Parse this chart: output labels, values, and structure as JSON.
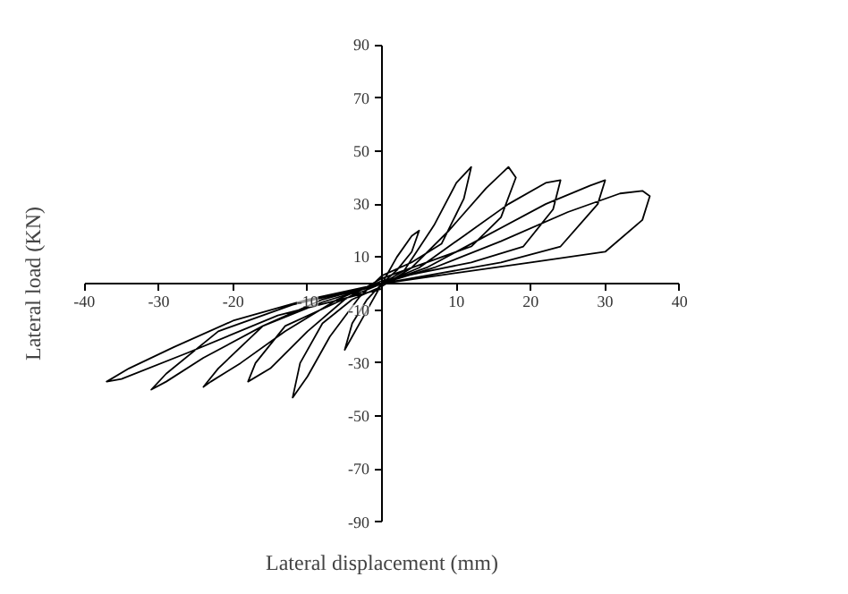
{
  "chart_data": {
    "type": "line",
    "xlabel": "Lateral displacement (mm)",
    "ylabel": "Lateral load (KN)",
    "xlim": [
      -40,
      40
    ],
    "ylim": [
      -90,
      90
    ],
    "xticks": [
      -40,
      -30,
      -20,
      -10,
      10,
      20,
      30,
      40
    ],
    "yticks": [
      -90,
      -70,
      -50,
      -30,
      -10,
      10,
      30,
      50,
      70,
      90
    ],
    "grid": false,
    "marker": "none",
    "line_style": "solid",
    "series": [
      {
        "color": "#000000",
        "x": [
          0,
          2,
          4,
          5,
          4,
          2,
          0,
          -2,
          -4,
          -5,
          -4,
          -2,
          0,
          3,
          7,
          10,
          12,
          11,
          8,
          4,
          0,
          -3,
          -7,
          -10,
          -12,
          -11,
          -8,
          -4,
          0,
          4,
          9,
          14,
          17,
          18,
          16,
          12,
          6,
          0,
          -5,
          -10,
          -15,
          -18,
          -17,
          -13,
          -6,
          0,
          5,
          11,
          17,
          22,
          24,
          23,
          19,
          12,
          5,
          0,
          -6,
          -13,
          -19,
          -23,
          -24,
          -22,
          -16,
          -8,
          0,
          6,
          14,
          22,
          28,
          30,
          29,
          24,
          16,
          8,
          0,
          -8,
          -16,
          -24,
          -29,
          -31,
          -29,
          -22,
          -12,
          0,
          7,
          16,
          25,
          32,
          35,
          36,
          35,
          30,
          20,
          10,
          0,
          -10,
          -20,
          -28,
          -34,
          -37,
          -35,
          -26,
          -14,
          0
        ],
        "values": [
          0,
          10,
          18,
          20,
          12,
          5,
          0,
          -10,
          -20,
          -25,
          -15,
          -6,
          0,
          5,
          22,
          38,
          44,
          32,
          15,
          8,
          3,
          -5,
          -20,
          -35,
          -43,
          -30,
          -15,
          -6,
          -1,
          6,
          20,
          36,
          44,
          40,
          25,
          14,
          8,
          2,
          -6,
          -18,
          -32,
          -37,
          -30,
          -16,
          -7,
          0,
          6,
          18,
          30,
          38,
          39,
          28,
          14,
          8,
          4,
          1,
          -6,
          -18,
          -30,
          -37,
          -39,
          -32,
          -16,
          -7,
          0,
          6,
          18,
          30,
          37,
          39,
          30,
          14,
          8,
          4,
          0,
          -6,
          -16,
          -28,
          -37,
          -40,
          -34,
          -18,
          -8,
          0,
          6,
          16,
          27,
          34,
          35,
          33,
          24,
          12,
          8,
          4,
          0,
          -6,
          -14,
          -24,
          -32,
          -37,
          -36,
          -26,
          -12,
          -2
        ]
      }
    ]
  }
}
